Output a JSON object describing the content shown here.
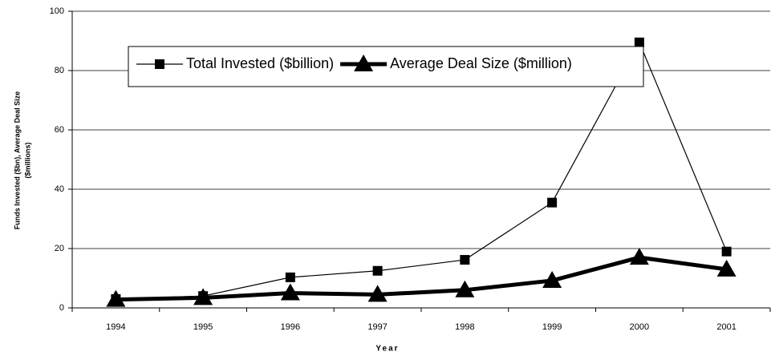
{
  "chart_data": {
    "type": "line",
    "ylabel": [
      "Funds Invested ($bn), Average Deal Size",
      "($millions)"
    ],
    "xlabel": "Year",
    "categories": [
      "1994",
      "1995",
      "1996",
      "1997",
      "1998",
      "1999",
      "2000",
      "2001"
    ],
    "series": [
      {
        "name": "Total Invested ($billion)",
        "color": "#000000",
        "marker": "square",
        "values": [
          3,
          4,
          10.3,
          12.5,
          16.2,
          35.5,
          89.5,
          19
        ]
      },
      {
        "name": "Average Deal Size ($million)",
        "color": "#000000",
        "marker": "triangle",
        "values": [
          2.8,
          3.4,
          5,
          4.5,
          6,
          9.2,
          17,
          13
        ]
      }
    ],
    "ylim": [
      0,
      100
    ],
    "yticks": [
      0,
      20,
      40,
      60,
      80,
      100
    ],
    "grid": true
  }
}
